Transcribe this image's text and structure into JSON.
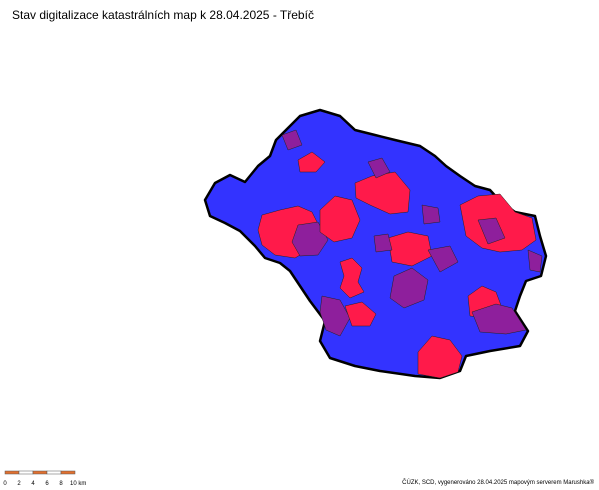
{
  "header": {
    "title": "Stav digitalizace katastrálních map k 28.04.2025 - Třebíč"
  },
  "scale_bar": {
    "labels": [
      "0",
      "2",
      "4",
      "6",
      "8",
      "10 km"
    ]
  },
  "footer": {
    "attribution": "ČÚZK, SCD, vygenerováno 28.04.2025 mapovým serverem Marushka®"
  }
}
